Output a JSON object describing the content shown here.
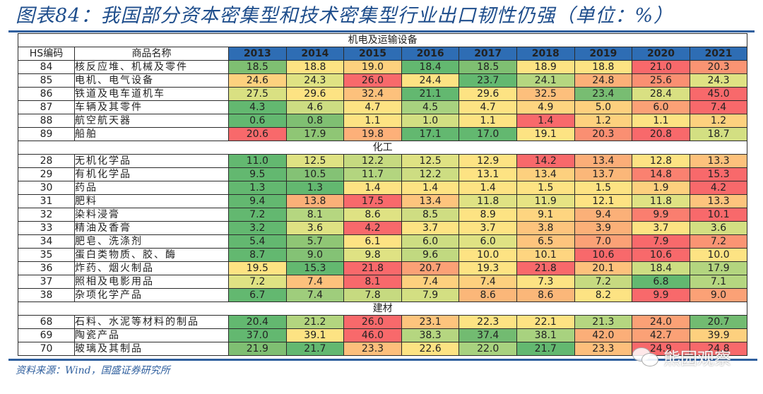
{
  "header": {
    "title": "图表84：我国部分资本密集型和技术密集型行业出口韧性仍强（单位：%）"
  },
  "table": {
    "columns": {
      "hs_code": "HS编码",
      "product_name": "商品名称",
      "years": [
        "2013",
        "2014",
        "2015",
        "2016",
        "2017",
        "2018",
        "2019",
        "2020",
        "2021"
      ]
    },
    "sections": [
      {
        "label": "机电及运输设备",
        "rows": [
          {
            "hs": "84",
            "name": "核反应堆、机械及零件",
            "values": [
              "18.5",
              "18.8",
              "19.0",
              "18.4",
              "18.5",
              "18.9",
              "18.8",
              "21.0",
              "20.3"
            ],
            "colors": [
              "#7fbf72",
              "#fde383",
              "#fdd17e",
              "#63b870",
              "#7fbf72",
              "#fde383",
              "#fde383",
              "#f8696b",
              "#fa9473"
            ]
          },
          {
            "hs": "85",
            "name": "电机、电气设备",
            "values": [
              "24.6",
              "24.3",
              "26.0",
              "24.4",
              "23.7",
              "24.1",
              "24.8",
              "25.6",
              "24.3"
            ],
            "colors": [
              "#fdd17e",
              "#dfe283",
              "#f8696b",
              "#fde383",
              "#63b870",
              "#b5d680",
              "#fbb078",
              "#fa8f72",
              "#dfe283"
            ]
          },
          {
            "hs": "86",
            "name": "铁道及电车道机车",
            "values": [
              "27.5",
              "29.6",
              "32.4",
              "21.1",
              "29.6",
              "32.5",
              "23.4",
              "28.4",
              "45.0"
            ],
            "colors": [
              "#d9e082",
              "#fde383",
              "#fdc17c",
              "#63b870",
              "#fde383",
              "#fdbf7c",
              "#78bd72",
              "#d9e082",
              "#f8696b"
            ]
          },
          {
            "hs": "87",
            "name": "车辆及其零件",
            "values": [
              "4.3",
              "4.6",
              "4.7",
              "4.5",
              "4.7",
              "4.9",
              "5.0",
              "6.0",
              "7.4"
            ],
            "colors": [
              "#63b870",
              "#cddd82",
              "#fde383",
              "#a8d27f",
              "#fde383",
              "#fed580",
              "#fdd07e",
              "#fba176",
              "#f8696b"
            ]
          },
          {
            "hs": "88",
            "name": "航空航天器",
            "values": [
              "0.6",
              "0.8",
              "1.1",
              "1.0",
              "1.1",
              "1.4",
              "1.2",
              "1.1",
              "1.2"
            ],
            "colors": [
              "#63b870",
              "#7fbf72",
              "#fde383",
              "#d2df82",
              "#fde383",
              "#f8696b",
              "#fdd17e",
              "#fde383",
              "#fdd17e"
            ]
          },
          {
            "hs": "89",
            "name": "船舶",
            "values": [
              "20.6",
              "17.9",
              "19.8",
              "17.1",
              "17.0",
              "19.1",
              "20.3",
              "20.8",
              "18.7"
            ],
            "colors": [
              "#f8696b",
              "#8fc675",
              "#fdb079",
              "#63b870",
              "#63b870",
              "#fde383",
              "#fa8f72",
              "#f8696b",
              "#d3df82"
            ]
          }
        ]
      },
      {
        "label": "化工",
        "rows": [
          {
            "hs": "28",
            "name": "无机化学品",
            "values": [
              "11.0",
              "12.5",
              "12.2",
              "12.5",
              "12.9",
              "14.2",
              "13.4",
              "12.8",
              "13.3"
            ],
            "colors": [
              "#63b870",
              "#dfe283",
              "#c6da80",
              "#dfe283",
              "#fde383",
              "#f8696b",
              "#fbae78",
              "#fde383",
              "#fdc17c"
            ]
          },
          {
            "hs": "29",
            "name": "有机化学品",
            "values": [
              "9.5",
              "10.5",
              "11.7",
              "12.2",
              "13.1",
              "13.4",
              "13.7",
              "14.8",
              "15.3"
            ],
            "colors": [
              "#63b870",
              "#84c275",
              "#b3d57f",
              "#cddd82",
              "#fde383",
              "#fdd07e",
              "#fbb779",
              "#fa8170",
              "#f8696b"
            ]
          },
          {
            "hs": "30",
            "name": "药品",
            "values": [
              "1.3",
              "1.3",
              "1.4",
              "1.4",
              "1.4",
              "1.5",
              "1.5",
              "1.9",
              "4.2"
            ],
            "colors": [
              "#63b870",
              "#63b870",
              "#fde383",
              "#fde383",
              "#fde383",
              "#fde383",
              "#fde383",
              "#fdd07e",
              "#f8696b"
            ]
          },
          {
            "hs": "31",
            "name": "肥料",
            "values": [
              "9.4",
              "13.8",
              "17.5",
              "13.4",
              "11.8",
              "11.9",
              "12.1",
              "11.8",
              "13.3"
            ],
            "colors": [
              "#63b870",
              "#fbb078",
              "#f8696b",
              "#fdc47d",
              "#dfe283",
              "#e6e383",
              "#fde383",
              "#dfe283",
              "#fdc47d"
            ]
          },
          {
            "hs": "32",
            "name": "染料浸膏",
            "values": [
              "7.2",
              "8.1",
              "8.6",
              "8.5",
              "8.9",
              "9.1",
              "9.4",
              "9.9",
              "10.1"
            ],
            "colors": [
              "#63b870",
              "#b5d680",
              "#dfe283",
              "#cfdd82",
              "#fde383",
              "#fed580",
              "#fbb078",
              "#fa7e6f",
              "#f8696b"
            ]
          },
          {
            "hs": "33",
            "name": "精油及香膏",
            "values": [
              "3.2",
              "3.6",
              "4.2",
              "3.7",
              "3.7",
              "3.8",
              "3.9",
              "3.7",
              "3.6"
            ],
            "colors": [
              "#63b870",
              "#dfe283",
              "#f8696b",
              "#fde383",
              "#fde383",
              "#fdc47d",
              "#fbb078",
              "#fde383",
              "#d3df82"
            ]
          },
          {
            "hs": "34",
            "name": "肥皂、洗涤剂",
            "values": [
              "5.4",
              "5.7",
              "6.1",
              "6.0",
              "6.0",
              "6.5",
              "7.0",
              "7.9",
              "7.2"
            ],
            "colors": [
              "#63b870",
              "#8fc675",
              "#fde383",
              "#cddd82",
              "#dfe283",
              "#fdc47d",
              "#fba176",
              "#f8696b",
              "#fa9473"
            ]
          },
          {
            "hs": "35",
            "name": "蛋白类物质、胶、酶",
            "values": [
              "8.7",
              "9.0",
              "9.8",
              "9.6",
              "10.0",
              "10.1",
              "10.6",
              "10.6",
              "10.0"
            ],
            "colors": [
              "#63b870",
              "#84c275",
              "#dfe283",
              "#c1d980",
              "#fde383",
              "#fed580",
              "#f8696b",
              "#f8696b",
              "#fde383"
            ]
          },
          {
            "hs": "36",
            "name": "炸药、烟火制品",
            "values": [
              "19.5",
              "15.3",
              "21.8",
              "20.7",
              "19.3",
              "21.8",
              "20.1",
              "18.4",
              "17.9"
            ],
            "colors": [
              "#fde383",
              "#63b870",
              "#f8696b",
              "#fba176",
              "#fde383",
              "#f8696b",
              "#fdc17c",
              "#cddd82",
              "#b3d57f"
            ]
          },
          {
            "hs": "37",
            "name": "照相及电影用品",
            "values": [
              "7.2",
              "7.4",
              "8.1",
              "7.4",
              "7.4",
              "7.3",
              "7.2",
              "6.8",
              "7.1"
            ],
            "colors": [
              "#dfe283",
              "#fdc17c",
              "#f8696b",
              "#fdd07e",
              "#fdd07e",
              "#fde383",
              "#c6da80",
              "#63b870",
              "#b5d680"
            ]
          },
          {
            "hs": "38",
            "name": "杂项化学产品",
            "values": [
              "6.7",
              "7.4",
              "7.8",
              "7.9",
              "8.6",
              "8.6",
              "8.2",
              "9.9",
              "9.0"
            ],
            "colors": [
              "#63b870",
              "#9fcd7c",
              "#c6da80",
              "#d3df82",
              "#fbb779",
              "#fbb779",
              "#fde383",
              "#f8696b",
              "#fba176"
            ]
          }
        ]
      },
      {
        "label": "建材",
        "rows": [
          {
            "hs": "68",
            "name": "石料、水泥等材料的制品",
            "values": [
              "20.4",
              "21.2",
              "26.0",
              "23.1",
              "22.3",
              "22.1",
              "21.3",
              "24.0",
              "20.7"
            ],
            "colors": [
              "#63b870",
              "#b3d57f",
              "#f8696b",
              "#fdc47d",
              "#fde383",
              "#fde383",
              "#b5d680",
              "#fba176",
              "#72bb71"
            ]
          },
          {
            "hs": "69",
            "name": "陶瓷产品",
            "values": [
              "37.0",
              "39.1",
              "46.0",
              "38.3",
              "37.4",
              "38.1",
              "42.0",
              "42.7",
              "39.9"
            ],
            "colors": [
              "#63b870",
              "#fde383",
              "#f8696b",
              "#b5d680",
              "#72bb71",
              "#a8d27f",
              "#fbae78",
              "#fba176",
              "#fdd07e"
            ]
          },
          {
            "hs": "70",
            "name": "玻璃及其制品",
            "values": [
              "21.9",
              "21.7",
              "23.3",
              "22.6",
              "22.0",
              "21.7",
              "23.3",
              "24.9",
              "24.8"
            ],
            "colors": [
              "#7fbf72",
              "#63b870",
              "#fdbf7c",
              "#fde383",
              "#a8d27f",
              "#63b870",
              "#fdbf7c",
              "#f8696b",
              "#f8696b"
            ]
          }
        ]
      }
    ]
  },
  "footer": {
    "source": "资料来源：Wind，国盛证券研究所"
  },
  "watermark": {
    "text": "熊园观察"
  },
  "chart_data": {
    "type": "table",
    "title": "图表84：我国部分资本密集型和技术密集型行业出口韧性仍强（单位：%）",
    "columns": [
      "HS编码",
      "商品名称",
      "2013",
      "2014",
      "2015",
      "2016",
      "2017",
      "2018",
      "2019",
      "2020",
      "2021"
    ],
    "groups": [
      "机电及运输设备",
      "化工",
      "建材"
    ],
    "rows": [
      [
        "84",
        "核反应堆、机械及零件",
        18.5,
        18.8,
        19.0,
        18.4,
        18.5,
        18.9,
        18.8,
        21.0,
        20.3
      ],
      [
        "85",
        "电机、电气设备",
        24.6,
        24.3,
        26.0,
        24.4,
        23.7,
        24.1,
        24.8,
        25.6,
        24.3
      ],
      [
        "86",
        "铁道及电车道机车",
        27.5,
        29.6,
        32.4,
        21.1,
        29.6,
        32.5,
        23.4,
        28.4,
        45.0
      ],
      [
        "87",
        "车辆及其零件",
        4.3,
        4.6,
        4.7,
        4.5,
        4.7,
        4.9,
        5.0,
        6.0,
        7.4
      ],
      [
        "88",
        "航空航天器",
        0.6,
        0.8,
        1.1,
        1.0,
        1.1,
        1.4,
        1.2,
        1.1,
        1.2
      ],
      [
        "89",
        "船舶",
        20.6,
        17.9,
        19.8,
        17.1,
        17.0,
        19.1,
        20.3,
        20.8,
        18.7
      ],
      [
        "28",
        "无机化学品",
        11.0,
        12.5,
        12.2,
        12.5,
        12.9,
        14.2,
        13.4,
        12.8,
        13.3
      ],
      [
        "29",
        "有机化学品",
        9.5,
        10.5,
        11.7,
        12.2,
        13.1,
        13.4,
        13.7,
        14.8,
        15.3
      ],
      [
        "30",
        "药品",
        1.3,
        1.3,
        1.4,
        1.4,
        1.4,
        1.5,
        1.5,
        1.9,
        4.2
      ],
      [
        "31",
        "肥料",
        9.4,
        13.8,
        17.5,
        13.4,
        11.8,
        11.9,
        12.1,
        11.8,
        13.3
      ],
      [
        "32",
        "染料浸膏",
        7.2,
        8.1,
        8.6,
        8.5,
        8.9,
        9.1,
        9.4,
        9.9,
        10.1
      ],
      [
        "33",
        "精油及香膏",
        3.2,
        3.6,
        4.2,
        3.7,
        3.7,
        3.8,
        3.9,
        3.7,
        3.6
      ],
      [
        "34",
        "肥皂、洗涤剂",
        5.4,
        5.7,
        6.1,
        6.0,
        6.0,
        6.5,
        7.0,
        7.9,
        7.2
      ],
      [
        "35",
        "蛋白类物质、胶、酶",
        8.7,
        9.0,
        9.8,
        9.6,
        10.0,
        10.1,
        10.6,
        10.6,
        10.0
      ],
      [
        "36",
        "炸药、烟火制品",
        19.5,
        15.3,
        21.8,
        20.7,
        19.3,
        21.8,
        20.1,
        18.4,
        17.9
      ],
      [
        "37",
        "照相及电影用品",
        7.2,
        7.4,
        8.1,
        7.4,
        7.4,
        7.3,
        7.2,
        6.8,
        7.1
      ],
      [
        "38",
        "杂项化学产品",
        6.7,
        7.4,
        7.8,
        7.9,
        8.6,
        8.6,
        8.2,
        9.9,
        9.0
      ],
      [
        "68",
        "石料、水泥等材料的制品",
        20.4,
        21.2,
        26.0,
        23.1,
        22.3,
        22.1,
        21.3,
        24.0,
        20.7
      ],
      [
        "69",
        "陶瓷产品",
        37.0,
        39.1,
        46.0,
        38.3,
        37.4,
        38.1,
        42.0,
        42.7,
        39.9
      ],
      [
        "70",
        "玻璃及其制品",
        21.9,
        21.7,
        23.3,
        22.6,
        22.0,
        21.7,
        23.3,
        24.9,
        24.8
      ]
    ],
    "colors": {
      "header_bg": "#2e6db4",
      "low": "#63b870",
      "mid": "#fde383",
      "high": "#f8696b",
      "rule": "#2f5f9e"
    }
  }
}
